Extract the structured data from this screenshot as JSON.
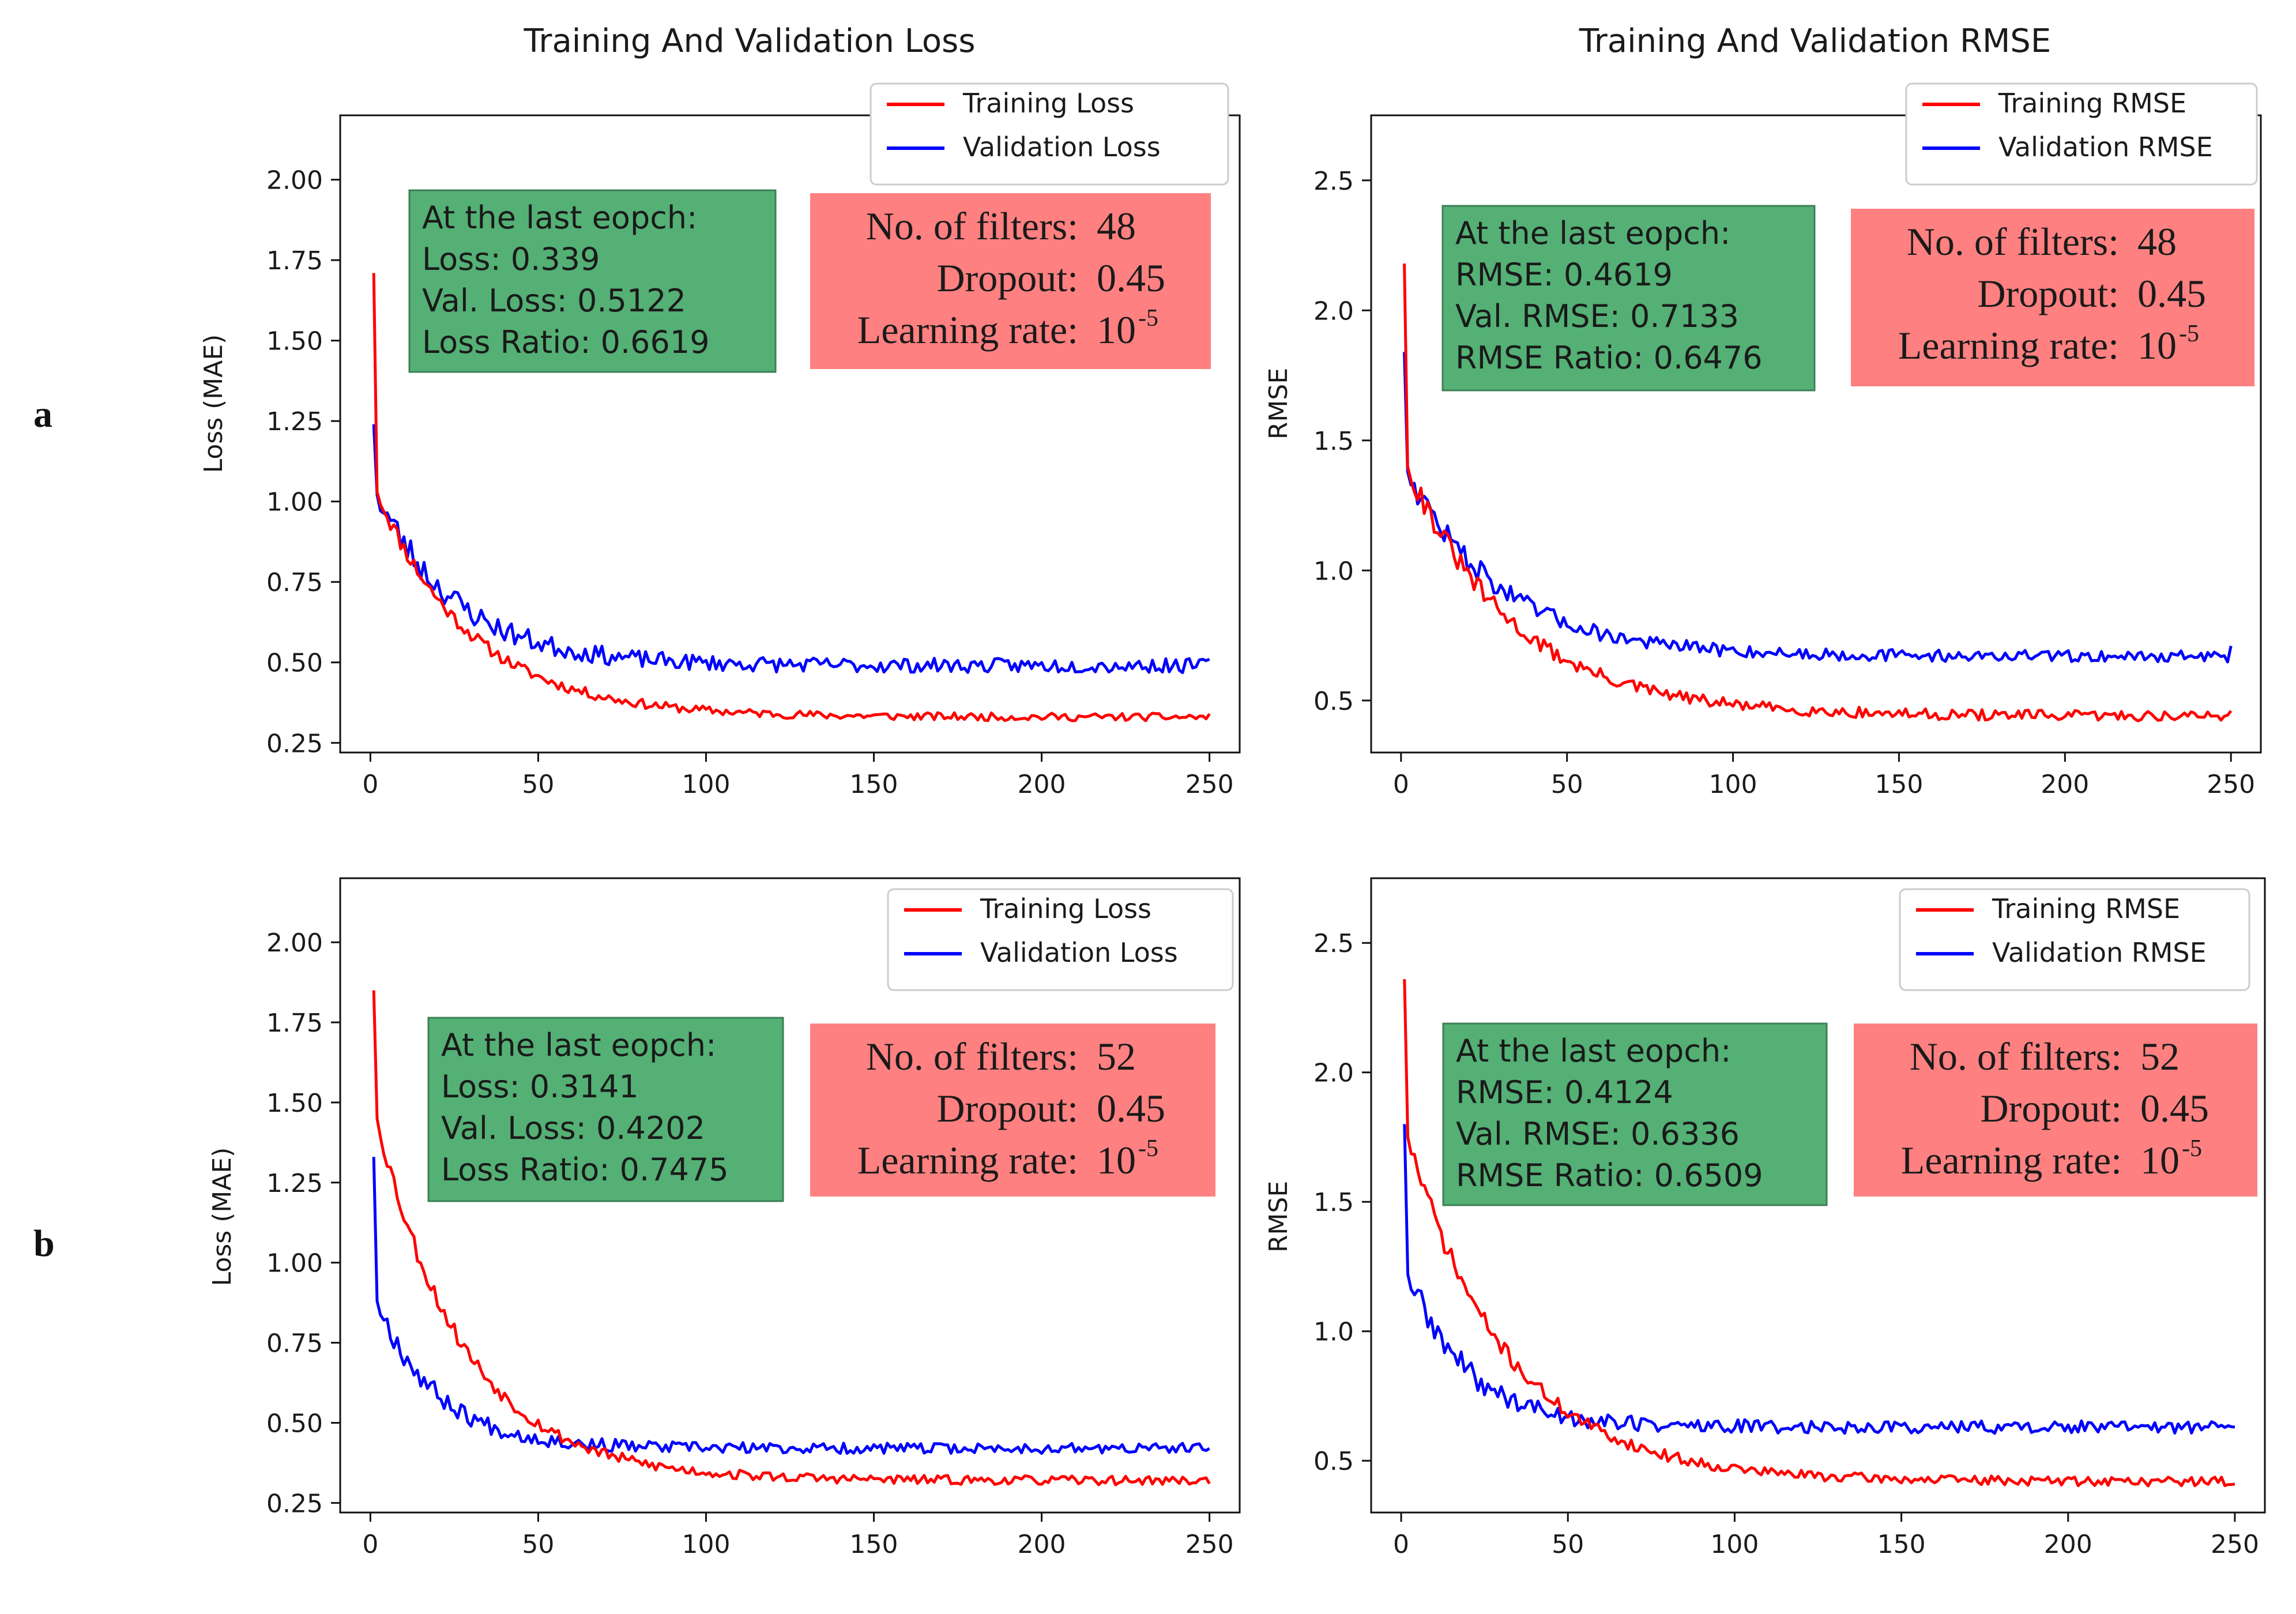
{
  "row_labels": [
    "a",
    "b"
  ],
  "chart_data": [
    {
      "id": "a-loss",
      "row": "a",
      "type": "line",
      "title": "Training And Validation Loss",
      "xlabel": "",
      "ylabel": "Loss (MAE)",
      "xlim": [
        -9,
        259
      ],
      "ylim": [
        0.22,
        2.2
      ],
      "xticks": [
        0,
        50,
        100,
        150,
        200,
        250
      ],
      "yticks": [
        0.25,
        0.5,
        0.75,
        1.0,
        1.25,
        1.5,
        1.75,
        2.0
      ],
      "ytick_labels": [
        "0.25",
        "0.50",
        "0.75",
        "1.00",
        "1.25",
        "1.50",
        "1.75",
        "2.00"
      ],
      "legend": "top-right",
      "series": [
        {
          "name": "Training Loss",
          "color": "#ff0000",
          "start": 1.71,
          "second": 1.03,
          "tau": 28,
          "final": 0.34,
          "asym": 0.33,
          "noise": 0.012,
          "seed": 11
        },
        {
          "name": "Validation Loss",
          "color": "#0000ff",
          "start": 1.24,
          "second": 1.02,
          "tau": 24,
          "final": 0.51,
          "asym": 0.49,
          "noise": 0.022,
          "seed": 23
        }
      ],
      "annotations": {
        "summary": {
          "heading": "At the last eopch:",
          "lines": [
            "Loss: 0.339",
            "Val. Loss: 0.5122",
            "Loss Ratio: 0.6619"
          ]
        },
        "params": {
          "filters_label": "No. of filters:",
          "filters_value": "48",
          "dropout_label": "Dropout:",
          "dropout_value": "0.45",
          "lr_label": "Learning rate:",
          "lr_base": "10",
          "lr_exp": "-5"
        }
      }
    },
    {
      "id": "a-rmse",
      "row": "a",
      "type": "line",
      "title": "Training And Validation RMSE",
      "xlabel": "",
      "ylabel": "RMSE",
      "xlim": [
        -9,
        259
      ],
      "ylim": [
        0.3,
        2.75
      ],
      "xticks": [
        0,
        50,
        100,
        150,
        200,
        250
      ],
      "yticks": [
        0.5,
        1.0,
        1.5,
        2.0,
        2.5
      ],
      "ytick_labels": [
        "0.5",
        "1.0",
        "1.5",
        "2.0",
        "2.5"
      ],
      "legend": "top-right",
      "series": [
        {
          "name": "Training RMSE",
          "color": "#ff0000",
          "start": 2.18,
          "second": 1.4,
          "tau": 32,
          "final": 0.46,
          "asym": 0.44,
          "noise": 0.02,
          "seed": 31
        },
        {
          "name": "Validation RMSE",
          "color": "#0000ff",
          "start": 1.84,
          "second": 1.38,
          "tau": 28,
          "final": 0.71,
          "asym": 0.67,
          "noise": 0.022,
          "seed": 47
        }
      ],
      "annotations": {
        "summary": {
          "heading": "At the last eopch:",
          "lines": [
            "RMSE: 0.4619",
            "Val. RMSE: 0.7133",
            "RMSE Ratio: 0.6476"
          ]
        },
        "params": {
          "filters_label": "No. of filters:",
          "filters_value": "48",
          "dropout_label": "Dropout:",
          "dropout_value": "0.45",
          "lr_label": "Learning rate:",
          "lr_base": "10",
          "lr_exp": "-5"
        }
      }
    },
    {
      "id": "b-loss",
      "row": "b",
      "type": "line",
      "title": "",
      "xlabel": "",
      "ylabel": "Loss (MAE)",
      "xlim": [
        -9,
        259
      ],
      "ylim": [
        0.22,
        2.2
      ],
      "xticks": [
        0,
        50,
        100,
        150,
        200,
        250
      ],
      "yticks": [
        0.25,
        0.5,
        0.75,
        1.0,
        1.25,
        1.5,
        1.75,
        2.0
      ],
      "ytick_labels": [
        "0.25",
        "0.50",
        "0.75",
        "1.00",
        "1.25",
        "1.50",
        "1.75",
        "2.00"
      ],
      "legend": "top-right",
      "series": [
        {
          "name": "Training Loss",
          "color": "#ff0000",
          "start": 1.85,
          "second": 1.45,
          "tau": 26,
          "final": 0.31,
          "asym": 0.32,
          "noise": 0.014,
          "seed": 53
        },
        {
          "name": "Validation Loss",
          "color": "#0000ff",
          "start": 1.33,
          "second": 0.88,
          "tau": 18,
          "final": 0.42,
          "asym": 0.42,
          "noise": 0.016,
          "seed": 67
        }
      ],
      "annotations": {
        "summary": {
          "heading": "At the last eopch:",
          "lines": [
            "Loss: 0.3141",
            "Val. Loss: 0.4202",
            "Loss Ratio: 0.7475"
          ]
        },
        "params": {
          "filters_label": "No. of filters:",
          "filters_value": "52",
          "dropout_label": "Dropout:",
          "dropout_value": "0.45",
          "lr_label": "Learning rate:",
          "lr_base": "10",
          "lr_exp": "-5"
        }
      }
    },
    {
      "id": "b-rmse",
      "row": "b",
      "type": "line",
      "title": "",
      "xlabel": "",
      "ylabel": "RMSE",
      "xlim": [
        -9,
        259
      ],
      "ylim": [
        0.3,
        2.75
      ],
      "xticks": [
        0,
        50,
        100,
        150,
        200,
        250
      ],
      "yticks": [
        0.5,
        1.0,
        1.5,
        2.0,
        2.5
      ],
      "ytick_labels": [
        "0.5",
        "1.0",
        "1.5",
        "2.0",
        "2.5"
      ],
      "legend": "top-right",
      "series": [
        {
          "name": "Training RMSE",
          "color": "#ff0000",
          "start": 2.36,
          "second": 1.75,
          "tau": 30,
          "final": 0.41,
          "asym": 0.42,
          "noise": 0.018,
          "seed": 71
        },
        {
          "name": "Validation RMSE",
          "color": "#0000ff",
          "start": 1.8,
          "second": 1.22,
          "tau": 18,
          "final": 0.63,
          "asym": 0.63,
          "noise": 0.024,
          "seed": 89
        }
      ],
      "annotations": {
        "summary": {
          "heading": "At the last eopch:",
          "lines": [
            "RMSE: 0.4124",
            "Val. RMSE: 0.6336",
            "RMSE Ratio: 0.6509"
          ]
        },
        "params": {
          "filters_label": "No. of filters:",
          "filters_value": "52",
          "dropout_label": "Dropout:",
          "dropout_value": "0.45",
          "lr_label": "Learning rate:",
          "lr_base": "10",
          "lr_exp": "-5"
        }
      }
    }
  ],
  "colors": {
    "summary_box": "#54b075",
    "params_box": "#ff8080",
    "training": "#ff0000",
    "validation": "#0000ff"
  }
}
